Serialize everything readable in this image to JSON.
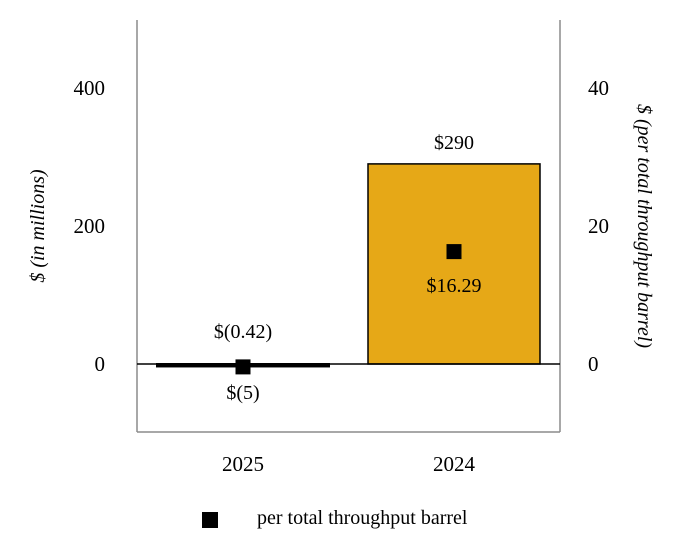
{
  "chart_data": {
    "type": "bar",
    "categories": [
      "2025",
      "2024"
    ],
    "series": [
      {
        "values": [
          -5,
          290
        ],
        "value_labels": [
          "$(5)",
          "$290"
        ],
        "axis": "left",
        "colors": [
          "#000000",
          "#e6a817"
        ]
      },
      {
        "name": "per total throughput barrel",
        "type": "scatter",
        "axis": "right",
        "values": [
          -0.42,
          16.29
        ],
        "value_labels": [
          "$(0.42)",
          "$16.29"
        ]
      }
    ],
    "ylabel": "$ (in millions)",
    "ylabel_right": "$ (per total throughput barrel)",
    "ylim": [
      -100,
      500
    ],
    "yticks": [
      "0",
      "200",
      "400"
    ],
    "ytick_values": [
      0,
      200,
      400
    ],
    "ylim_right": [
      -10,
      50
    ],
    "yticks_right": [
      "0",
      "20",
      "40"
    ],
    "ytick_values_right": [
      0,
      20,
      40
    ],
    "grid": false,
    "legend": "bottom"
  }
}
